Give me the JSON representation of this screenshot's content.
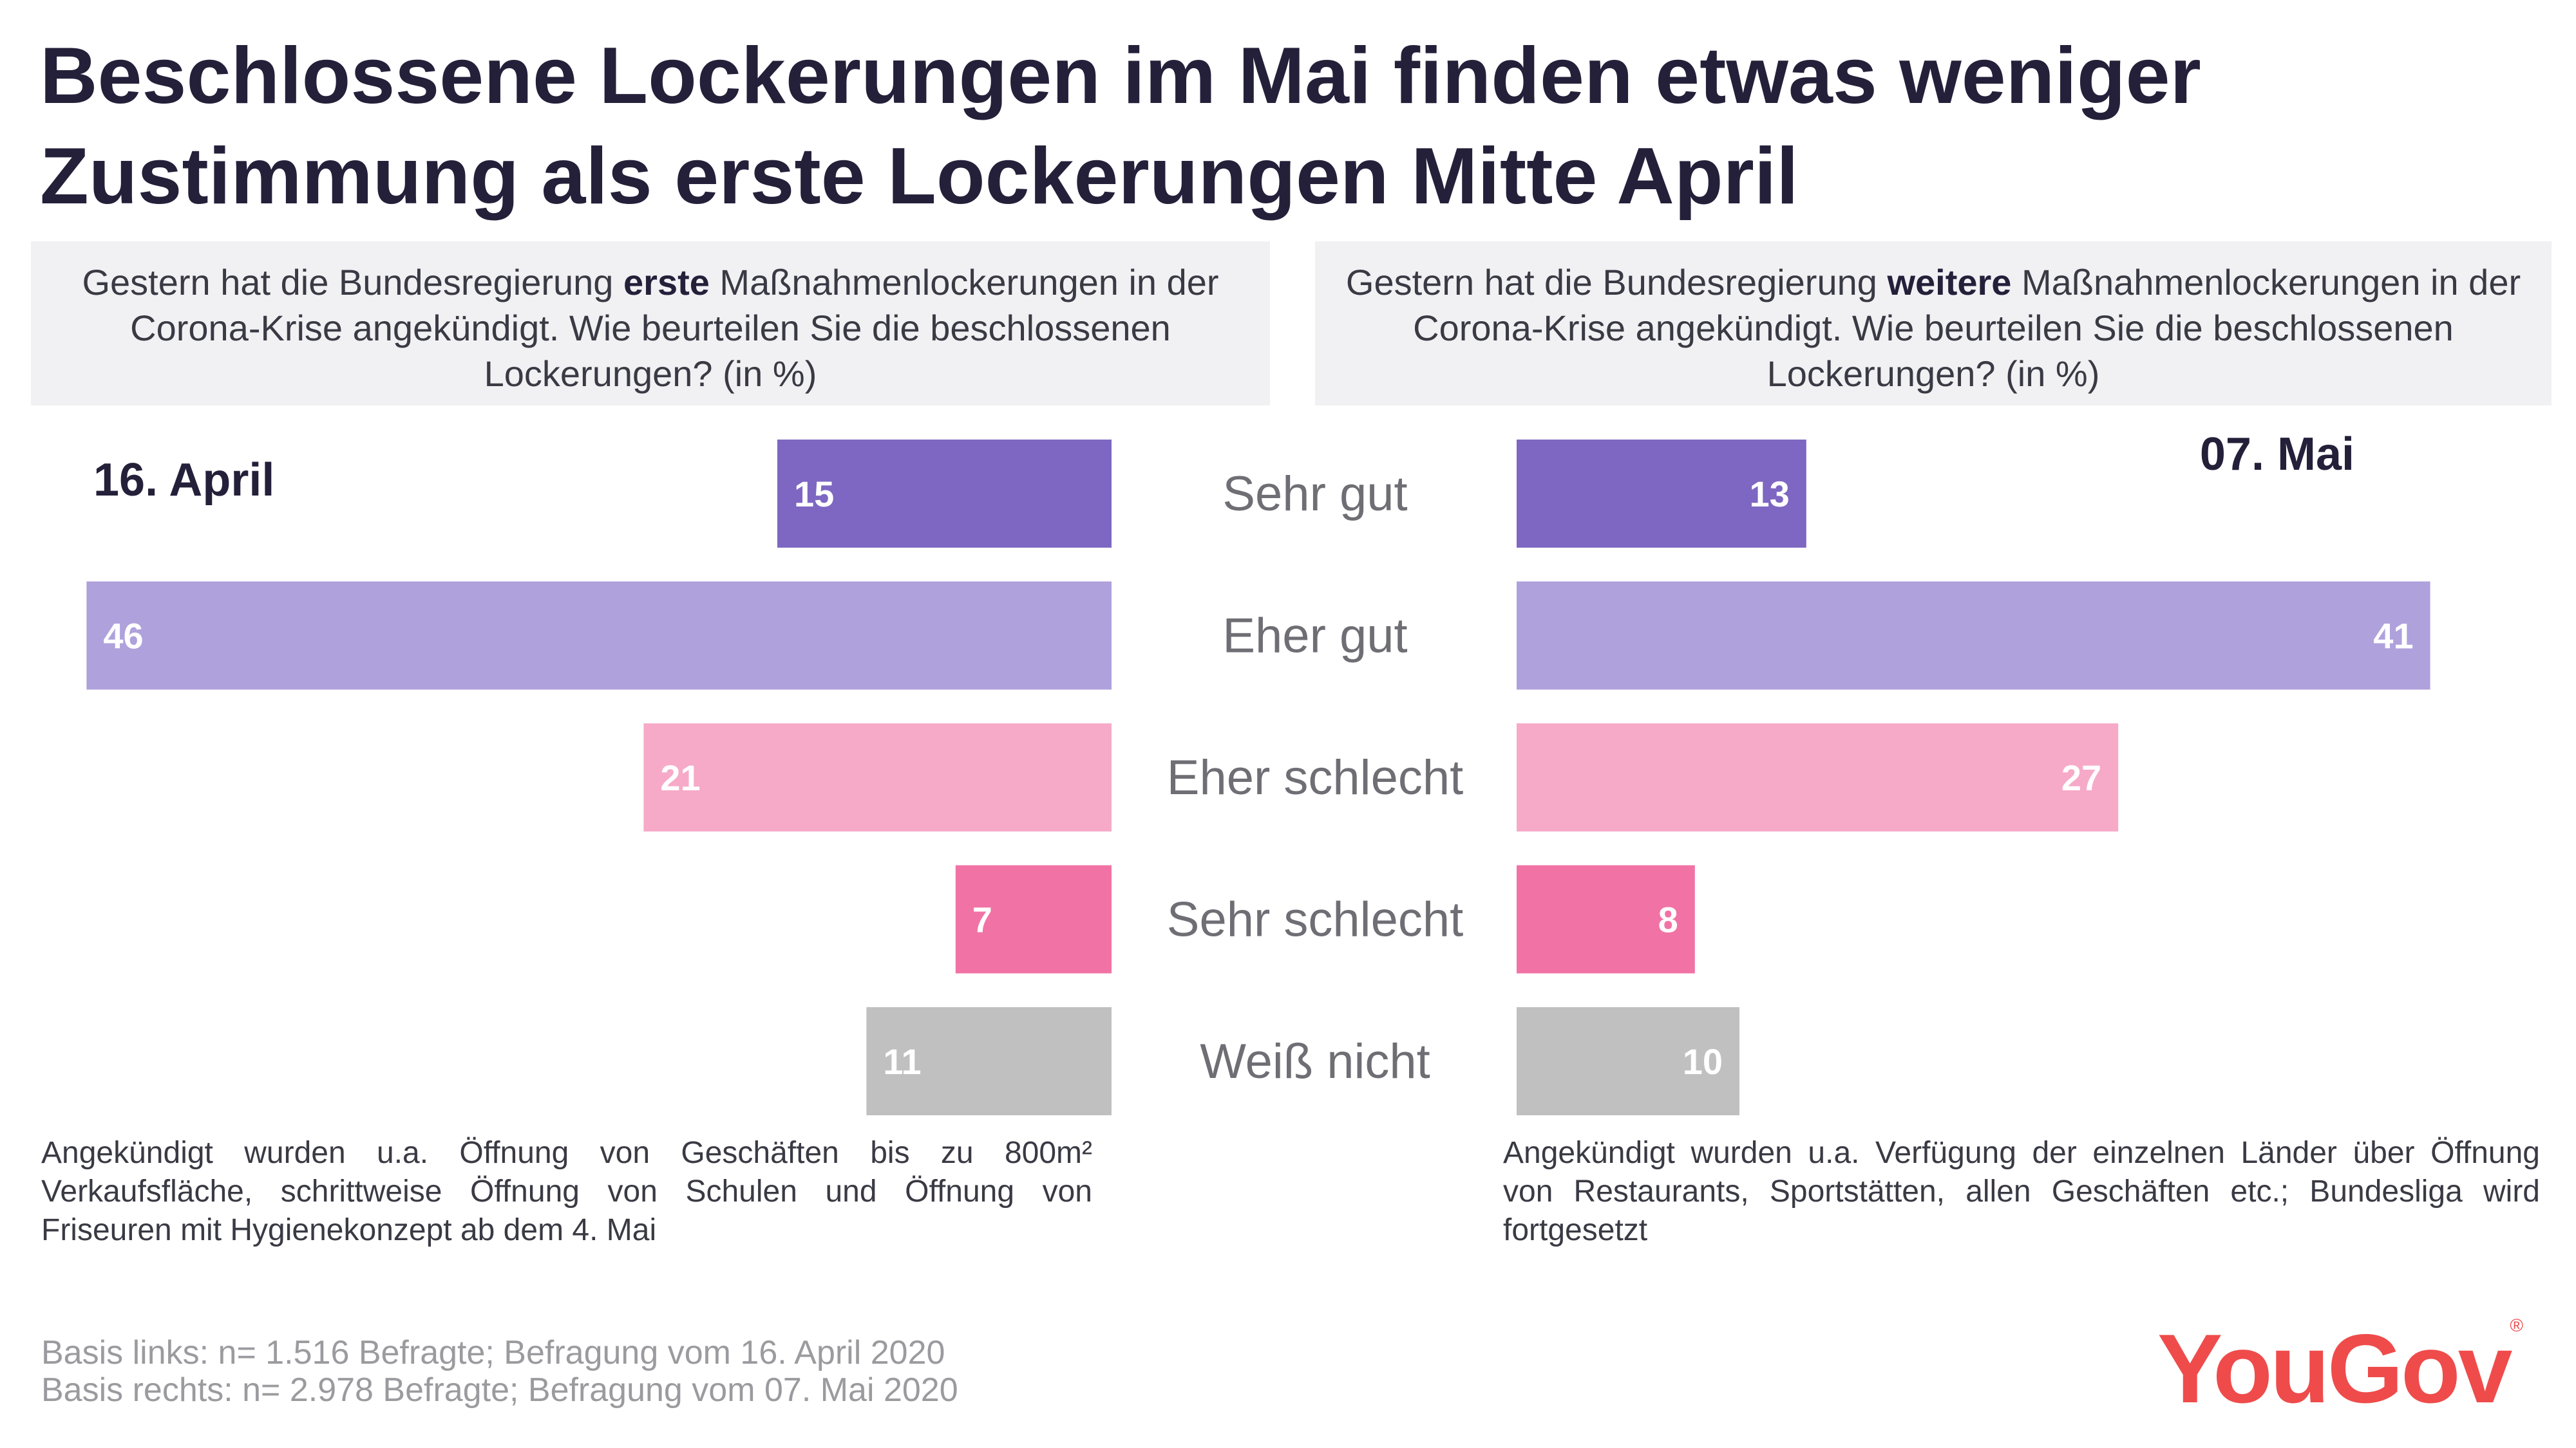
{
  "title_lines": [
    "Beschlossene Lockerungen im Mai finden etwas weniger",
    "Zustimmung als erste Lockerungen Mitte April"
  ],
  "questions": {
    "left": {
      "pre": "Gestern hat die Bundesregierung ",
      "bold": "erste",
      "post": " Maßnahmenlockerungen in der Corona-Krise angekündigt. Wie beurteilen Sie die beschlossenen Lockerungen? (in %)"
    },
    "right": {
      "pre": "Gestern hat die Bundesregierung ",
      "bold": "weitere",
      "post": " Maßnahmenlockerungen in der Corona-Krise angekündigt. Wie beurteilen Sie die beschlossenen Lockerungen? (in %)"
    }
  },
  "dates": {
    "left": "16. April",
    "right": "07. Mai"
  },
  "notes": {
    "left": "Angekündigt wurden u.a. Öffnung von Geschäften bis zu 800m² Verkaufsfläche, schrittweise Öffnung von Schulen und Öffnung von Friseuren mit Hygienekonzept ab dem 4. Mai",
    "right": "Angekündigt wurden u.a. Verfügung der einzelnen Länder über Öffnung von Restaurants, Sportstätten, allen Geschäften etc.; Bundesliga wird fortgesetzt"
  },
  "sources": [
    "Basis links: n= 1.516 Befragte; Befragung vom 16. April 2020",
    "Basis rechts: n= 2.978 Befragte; Befragung vom 07.  Mai 2020"
  ],
  "logo": {
    "text": "YouGov",
    "mark": "®"
  },
  "chart_data": {
    "type": "bar",
    "orientation": "horizontal-butterfly",
    "categories": [
      "Sehr gut",
      "Eher gut",
      "Eher schlecht",
      "Sehr schlecht",
      "Weiß nicht"
    ],
    "series": [
      {
        "name": "16. April",
        "side": "left",
        "values": [
          15,
          46,
          21,
          7,
          11
        ]
      },
      {
        "name": "07. Mai",
        "side": "right",
        "values": [
          13,
          41,
          27,
          8,
          10
        ]
      }
    ],
    "colors": [
      "#7e67c2",
      "#afa1dc",
      "#f6aac8",
      "#f173a5",
      "#c0c0c0"
    ],
    "label_color": "#ffffff",
    "category_label_color": "#6e6e74",
    "unit": "%",
    "xlim": [
      0,
      50
    ]
  }
}
